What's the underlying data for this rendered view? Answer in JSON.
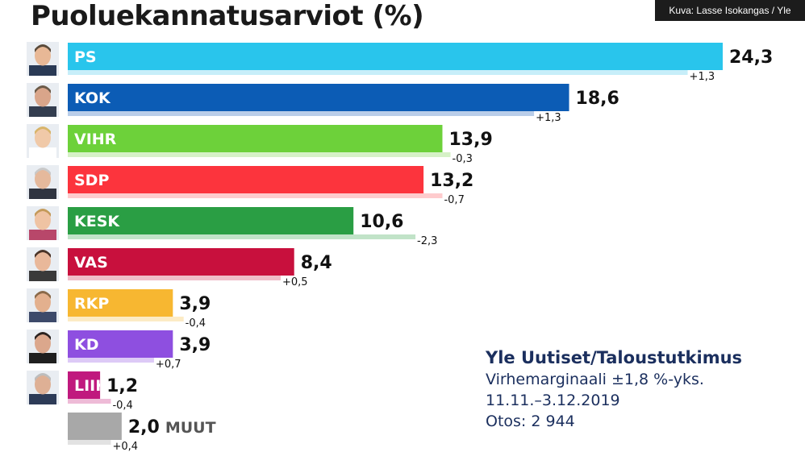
{
  "title": "Puoluekannatusarviot (%)",
  "credit": "Kuva: Lasse Isokangas / Yle",
  "source": {
    "org": "Yle Uutiset/Taloustutkimus",
    "margin": "Virhemarginaali ±1,8 %-yks.",
    "period": "11.11.–3.12.2019",
    "sample": "Otos: 2 944"
  },
  "chart_data": {
    "type": "bar",
    "orientation": "horizontal",
    "title": "Puoluekannatusarviot (%)",
    "categories": [
      "PS",
      "KOK",
      "VIHR",
      "SDP",
      "KESK",
      "VAS",
      "RKP",
      "KD",
      "LIIK",
      "MUUT"
    ],
    "values": [
      24.3,
      18.6,
      13.9,
      13.2,
      10.6,
      8.4,
      3.9,
      3.9,
      1.2,
      2.0
    ],
    "previous": [
      23.0,
      17.3,
      14.2,
      13.9,
      12.9,
      7.9,
      4.3,
      3.2,
      1.6,
      1.6
    ],
    "value_labels": [
      "24,3",
      "18,6",
      "13,9",
      "13,2",
      "10,6",
      "8,4",
      "3,9",
      "3,9",
      "1,2",
      "2,0"
    ],
    "change_labels": [
      "+1,3",
      "+1,3",
      "-0,3",
      "-0,7",
      "-2,3",
      "+0,5",
      "-0,4",
      "+0,7",
      "-0,4",
      "+0,4"
    ],
    "colors": [
      "#29c5ec",
      "#0c5cb5",
      "#6dd13a",
      "#fc343d",
      "#2a9e44",
      "#c8103d",
      "#f7b731",
      "#8e4fe0",
      "#c0197e",
      "#a8a8a8"
    ],
    "prev_colors": [
      "#c7eef9",
      "#b9cde9",
      "#d6f1c7",
      "#fecbcd",
      "#c1e3c8",
      "#f0bdc8",
      "#fcebc5",
      "#ddcaf6",
      "#eebbd7",
      "#e2e2e2"
    ],
    "xlim": [
      0,
      24.3
    ],
    "grid": false,
    "legend": "none"
  }
}
